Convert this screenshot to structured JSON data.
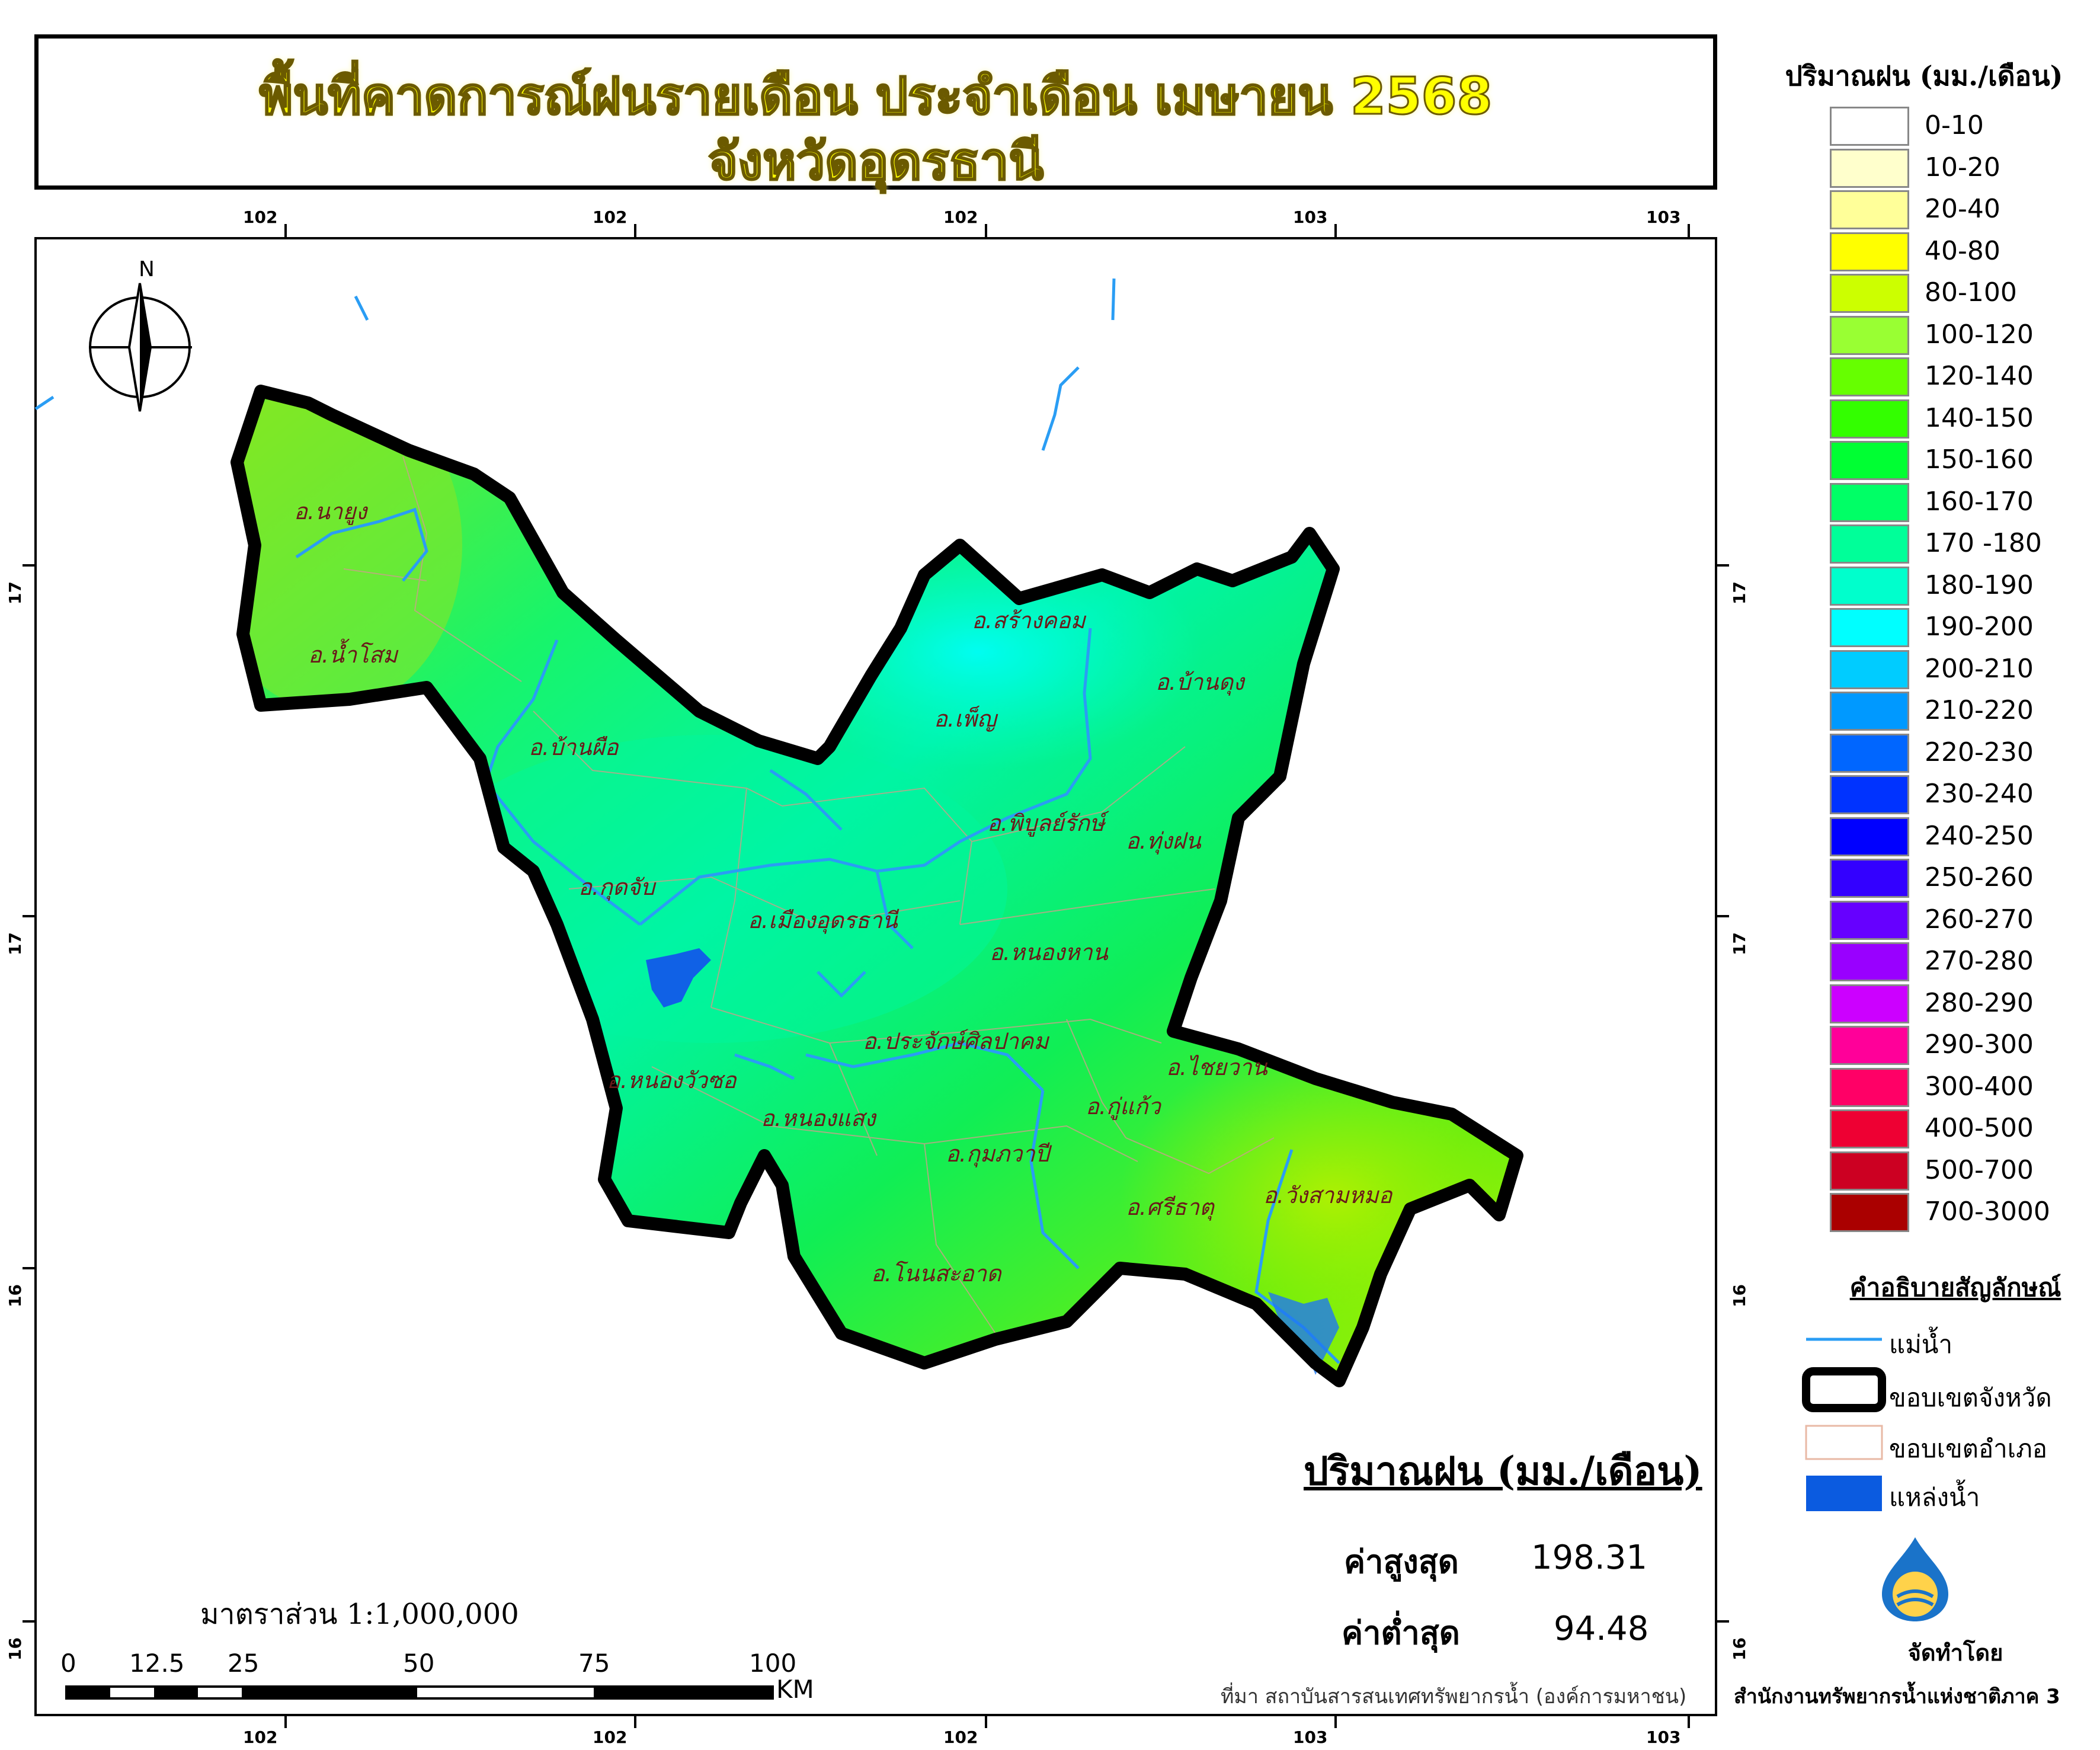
{
  "title": {
    "line1": "พื้นที่คาดการณ์ฝนรายเดือน ประจำเดือน เมษายน 2568",
    "line2": "จังหวัดอุดรธานี"
  },
  "axes": {
    "top_ticks": [
      "102",
      "102",
      "102",
      "103",
      "103"
    ],
    "bottom_ticks": [
      "102",
      "102",
      "102",
      "103",
      "103"
    ],
    "left_ticks": [
      "17",
      "17",
      "16",
      "16"
    ],
    "right_ticks": [
      "17",
      "17",
      "16",
      "16"
    ]
  },
  "north_label": "N",
  "districts": [
    "อ.นายูง",
    "อ.น้ำโสม",
    "อ.บ้านผือ",
    "อ.สร้างคอม",
    "อ.เพ็ญ",
    "อ.บ้านดุง",
    "อ.พิบูลย์รักษ์",
    "อ.ทุ่งฝน",
    "อ.กุดจับ",
    "อ.เมืองอุดรธานี",
    "อ.หนองหาน",
    "อ.ประจักษ์ศิลปาคม",
    "อ.ไชยวาน",
    "อ.หนองวัวซอ",
    "อ.หนองแสง",
    "อ.กู่แก้ว",
    "อ.กุมภวาปี",
    "อ.ศรีธาตุ",
    "อ.วังสามหมอ",
    "อ.โนนสะอาด"
  ],
  "legend": {
    "title": "ปริมาณฝน (มม./เดือน)",
    "items": [
      {
        "label": "0-10",
        "color": "#ffffff"
      },
      {
        "label": "10-20",
        "color": "#ffffcc"
      },
      {
        "label": "20-40",
        "color": "#ffff99"
      },
      {
        "label": "40-80",
        "color": "#ffff00"
      },
      {
        "label": "80-100",
        "color": "#ccff00"
      },
      {
        "label": "100-120",
        "color": "#99ff33"
      },
      {
        "label": "120-140",
        "color": "#66ff00"
      },
      {
        "label": "140-150",
        "color": "#33ff00"
      },
      {
        "label": "150-160",
        "color": "#00ff33"
      },
      {
        "label": "160-170",
        "color": "#00ff66"
      },
      {
        "label": "170 -180",
        "color": "#00ff99"
      },
      {
        "label": "180-190",
        "color": "#00ffcc"
      },
      {
        "label": "190-200",
        "color": "#00ffff"
      },
      {
        "label": "200-210",
        "color": "#00ccff"
      },
      {
        "label": "210-220",
        "color": "#0099ff"
      },
      {
        "label": "220-230",
        "color": "#0066ff"
      },
      {
        "label": "230-240",
        "color": "#0033ff"
      },
      {
        "label": "240-250",
        "color": "#0000ff"
      },
      {
        "label": "250-260",
        "color": "#3300ff"
      },
      {
        "label": "260-270",
        "color": "#6600ff"
      },
      {
        "label": "270-280",
        "color": "#9900ff"
      },
      {
        "label": "280-290",
        "color": "#cc00ff"
      },
      {
        "label": "290-300",
        "color": "#ff0099"
      },
      {
        "label": "300-400",
        "color": "#ff0066"
      },
      {
        "label": "400-500",
        "color": "#ee0033"
      },
      {
        "label": "500-700",
        "color": "#cc0022"
      },
      {
        "label": "700-3000",
        "color": "#aa0000"
      }
    ]
  },
  "symbols": {
    "title": "คำอธิบายสัญลักษณ์",
    "items": [
      {
        "label": "แม่น้ำ",
        "kind": "river-line"
      },
      {
        "label": "ขอบเขตจังหวัด",
        "kind": "province-boundary"
      },
      {
        "label": "ขอบเขตอำเภอ",
        "kind": "district-boundary"
      },
      {
        "label": "แหล่งน้ำ",
        "kind": "water-body"
      }
    ]
  },
  "stats": {
    "title": "ปริมาณฝน (มม./เดือน)",
    "max_label": "ค่าสูงสุด",
    "max_value": "198.31",
    "min_label": "ค่าต่ำสุด",
    "min_value": "94.48"
  },
  "scale": {
    "text": "มาตราส่วน 1:1,000,000",
    "labels": [
      "0",
      "12.5",
      "25",
      "50",
      "75",
      "100"
    ],
    "unit": "KM"
  },
  "source": "ที่มา  สถาบันสารสนเทศทรัพยากรน้ำ (องค์การมหาชน)",
  "made_by_label": "จัดทำโดย",
  "made_by_org": "สำนักงานทรัพยากรน้ำแห่งชาติภาค 3"
}
